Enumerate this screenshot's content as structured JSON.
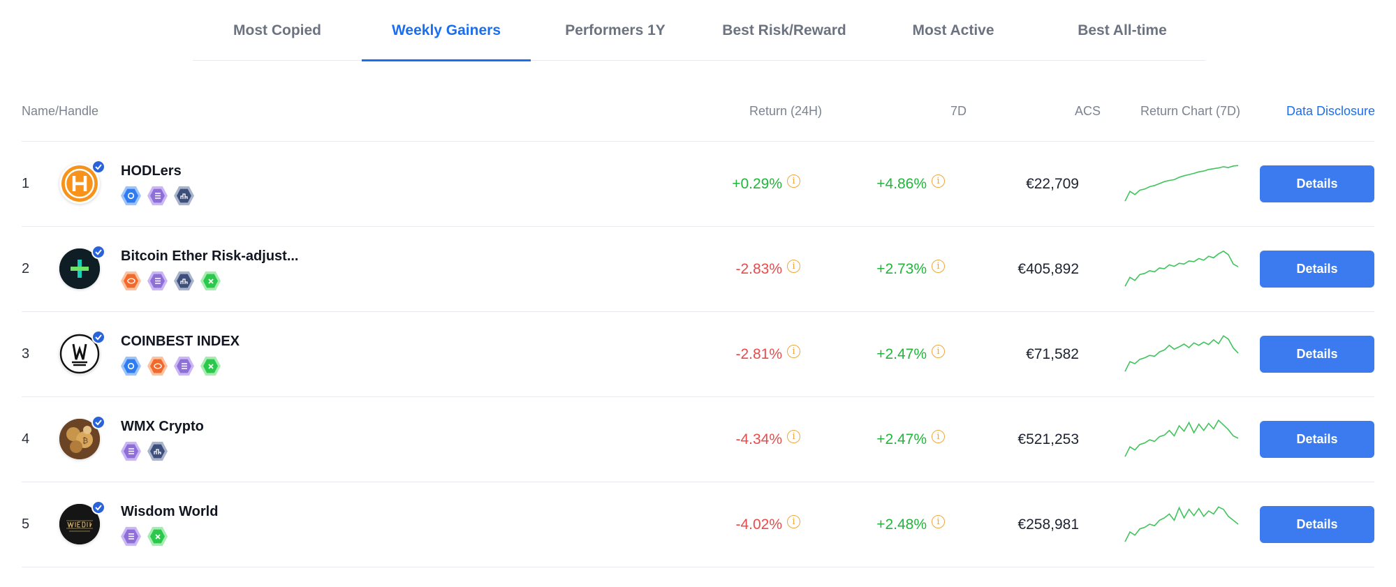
{
  "tabs": [
    {
      "label": "Most Copied",
      "active": false
    },
    {
      "label": "Weekly Gainers",
      "active": true
    },
    {
      "label": "Performers 1Y",
      "active": false
    },
    {
      "label": "Best Risk/Reward",
      "active": false
    },
    {
      "label": "Most Active",
      "active": false
    },
    {
      "label": "Best All-time",
      "active": false
    }
  ],
  "columns": {
    "name": "Name/Handle",
    "return_24h": "Return (24H)",
    "return_7d": "7D",
    "acs": "ACS",
    "chart": "Return Chart (7D)",
    "disclosure": "Data Disclosure"
  },
  "colors": {
    "accent": "#1a6ef0",
    "button": "#3b7bef",
    "positive": "#21b53a",
    "negative": "#ea4b4b",
    "info": "#f2a53a"
  },
  "rows": [
    {
      "rank": "1",
      "name": "HODLers",
      "avatar_icon": "hodlers-logo-icon",
      "badges": [
        "blue-badge-icon",
        "purple-badge-icon",
        "navy-badge-icon"
      ],
      "return_24h": "+0.29%",
      "return_7d": "+4.86%",
      "acs": "€22,709",
      "button": "Details",
      "spark": [
        0.05,
        0.3,
        0.22,
        0.33,
        0.36,
        0.42,
        0.45,
        0.5,
        0.55,
        0.58,
        0.6,
        0.66,
        0.7,
        0.73,
        0.76,
        0.8,
        0.82,
        0.86,
        0.88,
        0.9,
        0.93,
        0.91,
        0.95,
        0.96
      ]
    },
    {
      "rank": "2",
      "name": "Bitcoin Ether Risk-adjust...",
      "avatar_icon": "bitcoin-ether-logo-icon",
      "badges": [
        "orange-badge-icon",
        "purple-badge-icon",
        "navy-badge-icon",
        "green-badge-icon"
      ],
      "return_24h": "-2.83%",
      "return_7d": "+2.73%",
      "acs": "€405,892",
      "button": "Details",
      "spark": [
        0.05,
        0.28,
        0.2,
        0.35,
        0.38,
        0.45,
        0.42,
        0.52,
        0.5,
        0.6,
        0.56,
        0.64,
        0.62,
        0.7,
        0.68,
        0.76,
        0.72,
        0.82,
        0.78,
        0.88,
        0.95,
        0.86,
        0.62,
        0.55
      ]
    },
    {
      "rank": "3",
      "name": "COINBEST INDEX",
      "avatar_icon": "coinbest-logo-icon",
      "badges": [
        "blue-badge-icon",
        "orange-badge-icon",
        "purple-badge-icon",
        "green-badge-icon"
      ],
      "return_24h": "-2.81%",
      "return_7d": "+2.47%",
      "acs": "€71,582",
      "button": "Details",
      "spark": [
        0.05,
        0.3,
        0.25,
        0.36,
        0.4,
        0.46,
        0.44,
        0.55,
        0.6,
        0.72,
        0.62,
        0.68,
        0.75,
        0.66,
        0.78,
        0.72,
        0.8,
        0.74,
        0.86,
        0.76,
        0.96,
        0.88,
        0.65,
        0.52
      ]
    },
    {
      "rank": "4",
      "name": "WMX Crypto",
      "avatar_icon": "wmx-crypto-logo-icon",
      "badges": [
        "purple-badge-icon",
        "navy-badge-icon"
      ],
      "return_24h": "-4.34%",
      "return_7d": "+2.47%",
      "acs": "€521,253",
      "button": "Details",
      "spark": [
        0.05,
        0.3,
        0.22,
        0.36,
        0.4,
        0.48,
        0.44,
        0.56,
        0.6,
        0.72,
        0.58,
        0.84,
        0.7,
        0.92,
        0.66,
        0.88,
        0.72,
        0.9,
        0.76,
        0.98,
        0.86,
        0.74,
        0.58,
        0.52
      ]
    },
    {
      "rank": "5",
      "name": "Wisdom World",
      "avatar_icon": "wisdom-world-logo-icon",
      "badges": [
        "purple-badge-icon",
        "green-badge-icon"
      ],
      "return_24h": "-4.02%",
      "return_7d": "+2.48%",
      "acs": "€258,981",
      "button": "Details",
      "spark": [
        0.05,
        0.3,
        0.22,
        0.38,
        0.42,
        0.5,
        0.46,
        0.6,
        0.66,
        0.76,
        0.6,
        0.92,
        0.66,
        0.88,
        0.72,
        0.9,
        0.7,
        0.84,
        0.76,
        0.94,
        0.88,
        0.7,
        0.6,
        0.5
      ]
    }
  ]
}
